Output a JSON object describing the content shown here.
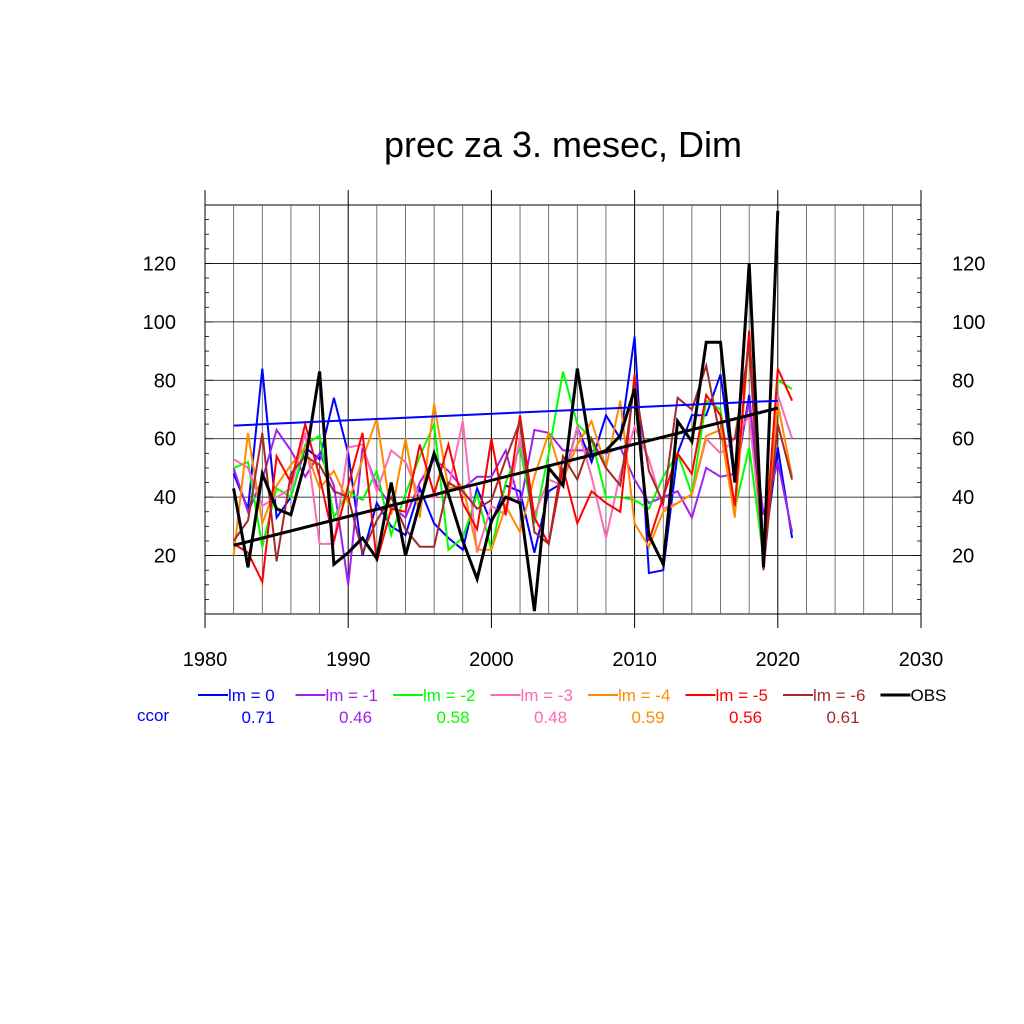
{
  "chart_data": {
    "type": "line",
    "title": "prec za 3. mesec, Dim",
    "xlabel": "",
    "ylabel": "",
    "xlim": [
      1980,
      2030
    ],
    "ylim": [
      0,
      140
    ],
    "x_ticks": [
      1980,
      1990,
      2000,
      2010,
      2020,
      2030
    ],
    "y_ticks": [
      20,
      40,
      60,
      80,
      100,
      120
    ],
    "grid": true,
    "legend_position": "bottom",
    "ccor_label": "ccor",
    "x": [
      1982,
      1983,
      1984,
      1985,
      1986,
      1987,
      1988,
      1989,
      1990,
      1991,
      1992,
      1993,
      1994,
      1995,
      1996,
      1997,
      1998,
      1999,
      2000,
      2001,
      2002,
      2003,
      2004,
      2005,
      2006,
      2007,
      2008,
      2009,
      2010,
      2011,
      2012,
      2013,
      2014,
      2015,
      2016,
      2017,
      2018,
      2019,
      2020,
      2021
    ],
    "series": [
      {
        "name": "lm = 0",
        "color": "#0000ff",
        "ccor": "0.71",
        "values": [
          48,
          36,
          84,
          33,
          40,
          57,
          53,
          74,
          55,
          20,
          38,
          30,
          27,
          43,
          31,
          26,
          22,
          43,
          31,
          44,
          42,
          21,
          42,
          45,
          64,
          52,
          68,
          60,
          95,
          14,
          15,
          55,
          68,
          68,
          82,
          45,
          75,
          20,
          57,
          26
        ],
        "trend": [
          64.5,
          73
        ]
      },
      {
        "name": "lm = -1",
        "color": "#a020f0",
        "ccor": "0.46",
        "values": [
          50,
          35,
          46,
          63,
          56,
          47,
          55,
          44,
          10,
          57,
          44,
          37,
          33,
          45,
          53,
          49,
          43,
          47,
          47,
          56,
          37,
          63,
          62,
          56,
          56,
          56,
          55,
          57,
          46,
          38,
          40,
          42,
          33,
          50,
          47,
          48,
          73,
          34,
          52,
          28
        ]
      },
      {
        "name": "lm = -2",
        "color": "#00ff00",
        "ccor": "0.58",
        "values": [
          50,
          52,
          23,
          43,
          40,
          58,
          61,
          33,
          42,
          39,
          49,
          27,
          41,
          54,
          65,
          22,
          26,
          41,
          22,
          45,
          57,
          31,
          55,
          83,
          65,
          60,
          40,
          40,
          39,
          36,
          47,
          55,
          41,
          73,
          70,
          36,
          57,
          19,
          80,
          77
        ]
      },
      {
        "name": "lm = -3",
        "color": "#ff69b4",
        "ccor": "0.48",
        "values": [
          53,
          50,
          37,
          40,
          43,
          62,
          24,
          24,
          57,
          58,
          42,
          56,
          52,
          40,
          40,
          43,
          66,
          21,
          37,
          34,
          60,
          34,
          46,
          44,
          64,
          47,
          26,
          48,
          64,
          53,
          36,
          38,
          41,
          60,
          55,
          60,
          68,
          21,
          75,
          60
        ]
      },
      {
        "name": "lm = -4",
        "color": "#ff8c00",
        "ccor": "0.59",
        "values": [
          20,
          62,
          31,
          44,
          51,
          57,
          43,
          49,
          38,
          53,
          67,
          34,
          60,
          33,
          72,
          43,
          44,
          22,
          22,
          37,
          28,
          47,
          62,
          46,
          58,
          66,
          50,
          73,
          31,
          23,
          35,
          38,
          41,
          61,
          63,
          33,
          95,
          17,
          72,
          47
        ]
      },
      {
        "name": "lm = -5",
        "color": "#ff0000",
        "ccor": "0.56",
        "values": [
          24,
          21,
          11,
          54,
          45,
          65,
          47,
          25,
          44,
          62,
          18,
          36,
          35,
          58,
          41,
          58,
          38,
          29,
          60,
          34,
          68,
          33,
          24,
          50,
          31,
          42,
          38,
          35,
          82,
          25,
          40,
          55,
          48,
          75,
          68,
          37,
          97,
          16,
          84,
          73
        ]
      },
      {
        "name": "lm = -6",
        "color": "#a52a2a",
        "ccor": "0.61",
        "values": [
          25,
          32,
          62,
          18,
          48,
          54,
          51,
          42,
          40,
          21,
          32,
          40,
          29,
          23,
          23,
          45,
          42,
          36,
          39,
          53,
          66,
          28,
          24,
          54,
          46,
          60,
          50,
          44,
          79,
          49,
          38,
          74,
          70,
          85,
          60,
          60,
          92,
          15,
          65,
          46
        ]
      },
      {
        "name": "OBS",
        "color": "#000000",
        "ccor": "",
        "values": [
          43,
          16,
          48,
          36,
          34,
          52,
          83,
          17,
          21,
          26,
          19,
          45,
          20,
          38,
          55,
          41,
          25,
          12,
          32,
          40,
          38,
          1,
          50,
          44,
          84,
          54,
          56,
          61,
          77,
          27,
          17,
          66,
          59,
          93,
          93,
          45,
          120,
          16,
          138,
          null
        ],
        "trend": [
          23.5,
          70.5
        ]
      }
    ]
  }
}
